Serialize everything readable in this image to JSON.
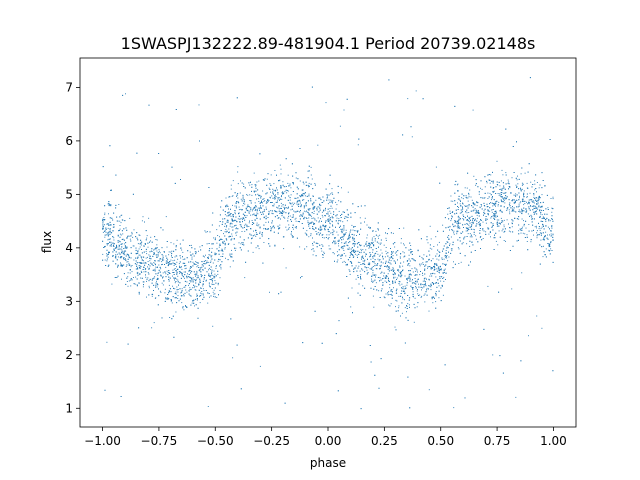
{
  "chart_data": {
    "type": "scatter",
    "title": "1SWASPJ132222.89-481904.1 Period 20739.02148s",
    "xlabel": "phase",
    "ylabel": "flux",
    "xlim": [
      -1.1,
      1.1
    ],
    "ylim": [
      0.65,
      7.55
    ],
    "x_ticks": [
      -1.0,
      -0.75,
      -0.5,
      -0.25,
      0.0,
      0.25,
      0.5,
      0.75,
      1.0
    ],
    "x_tick_labels": [
      "−1.00",
      "−0.75",
      "−0.50",
      "−0.25",
      "0.00",
      "0.25",
      "0.50",
      "0.75",
      "1.00"
    ],
    "y_ticks": [
      1,
      2,
      3,
      4,
      5,
      6,
      7
    ],
    "y_tick_labels": [
      "1",
      "2",
      "3",
      "4",
      "5",
      "6",
      "7"
    ],
    "grid": false,
    "point_color": "#1f77b4",
    "phase_range": [
      -1.0,
      1.0
    ],
    "profile": {
      "phase": [
        -1.0,
        -0.9,
        -0.8,
        -0.7,
        -0.6,
        -0.5,
        -0.45,
        -0.4,
        -0.3,
        -0.2,
        -0.1,
        0.0,
        0.1,
        0.2,
        0.3,
        0.4,
        0.5,
        0.55,
        0.6,
        0.7,
        0.8,
        0.9,
        1.0
      ],
      "flux": [
        4.25,
        3.95,
        3.7,
        3.5,
        3.45,
        3.6,
        4.4,
        4.55,
        4.7,
        4.8,
        4.75,
        4.45,
        4.05,
        3.75,
        3.55,
        3.45,
        3.55,
        4.4,
        4.55,
        4.7,
        4.8,
        4.75,
        4.3
      ]
    },
    "scatter_sigma": 0.32,
    "outlier_range": [
      0.9,
      7.2
    ]
  }
}
